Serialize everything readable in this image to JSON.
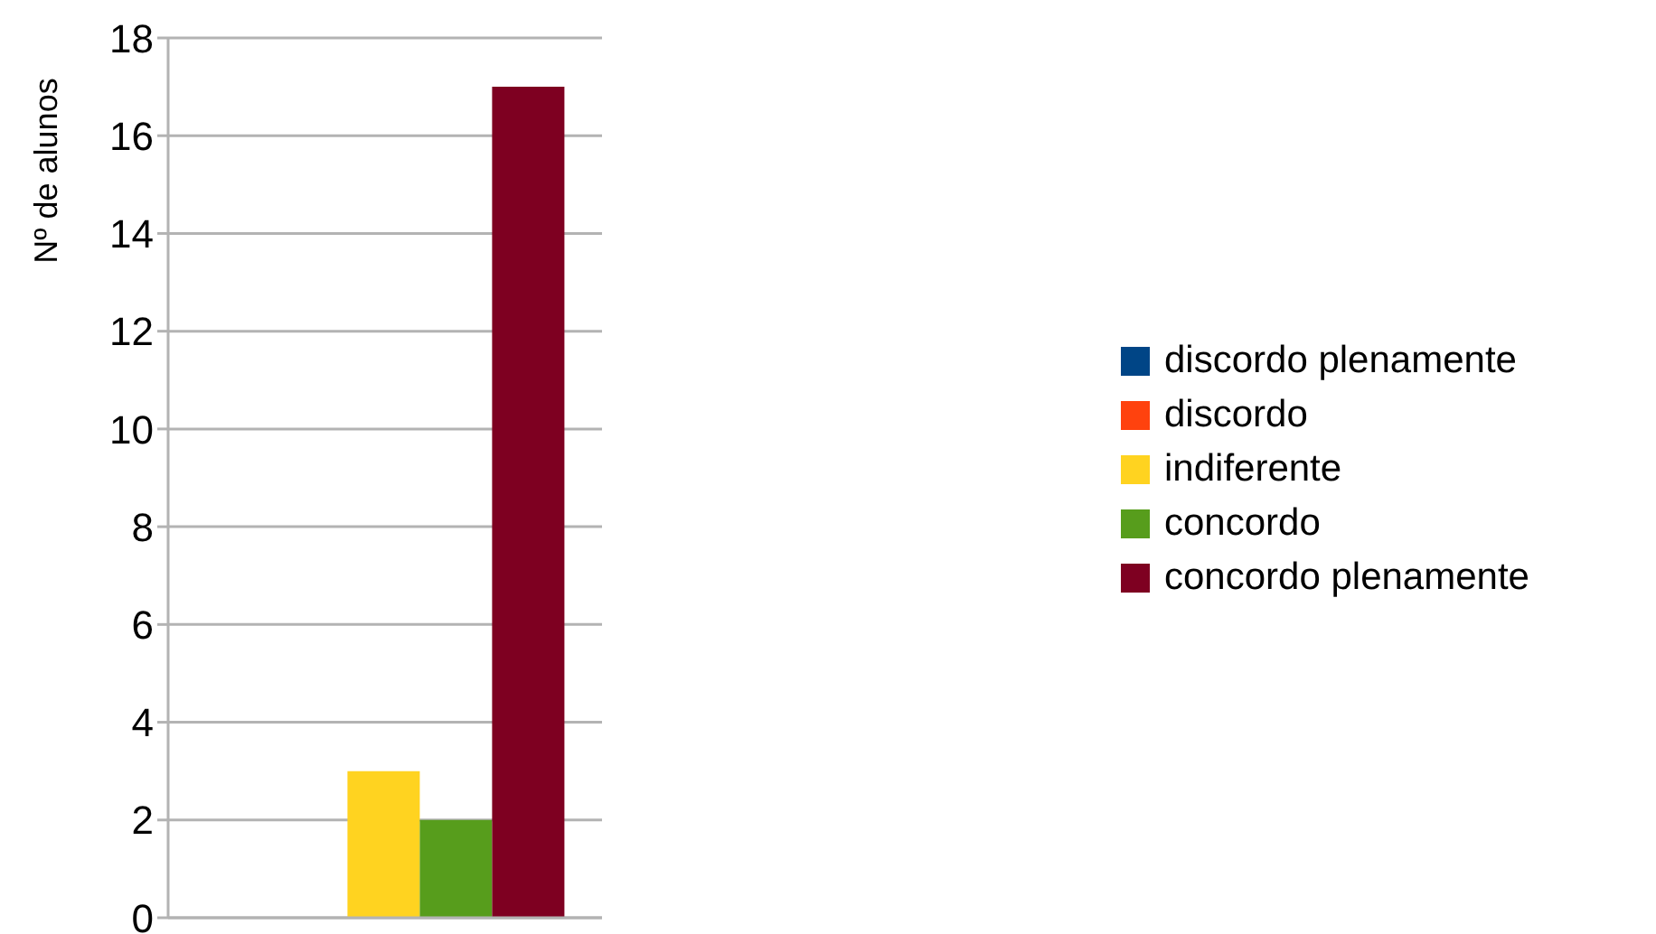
{
  "chart_data": {
    "type": "bar",
    "ylabel": "Nº de alunos",
    "categories": [
      null
    ],
    "series": [
      {
        "name": "discordo plenamente",
        "color": "#004586",
        "values": [
          0
        ]
      },
      {
        "name": "discordo",
        "color": "#ff420e",
        "values": [
          0
        ]
      },
      {
        "name": "indiferente",
        "color": "#ffd320",
        "values": [
          3
        ]
      },
      {
        "name": "concordo",
        "color": "#579d1c",
        "values": [
          2
        ]
      },
      {
        "name": "concordo plenamente",
        "color": "#7e0021",
        "values": [
          17
        ]
      }
    ],
    "ylim": [
      0,
      18
    ],
    "yticks": [
      0,
      2,
      4,
      6,
      8,
      10,
      12,
      14,
      16,
      18
    ],
    "grid": "y",
    "legend": "right"
  }
}
